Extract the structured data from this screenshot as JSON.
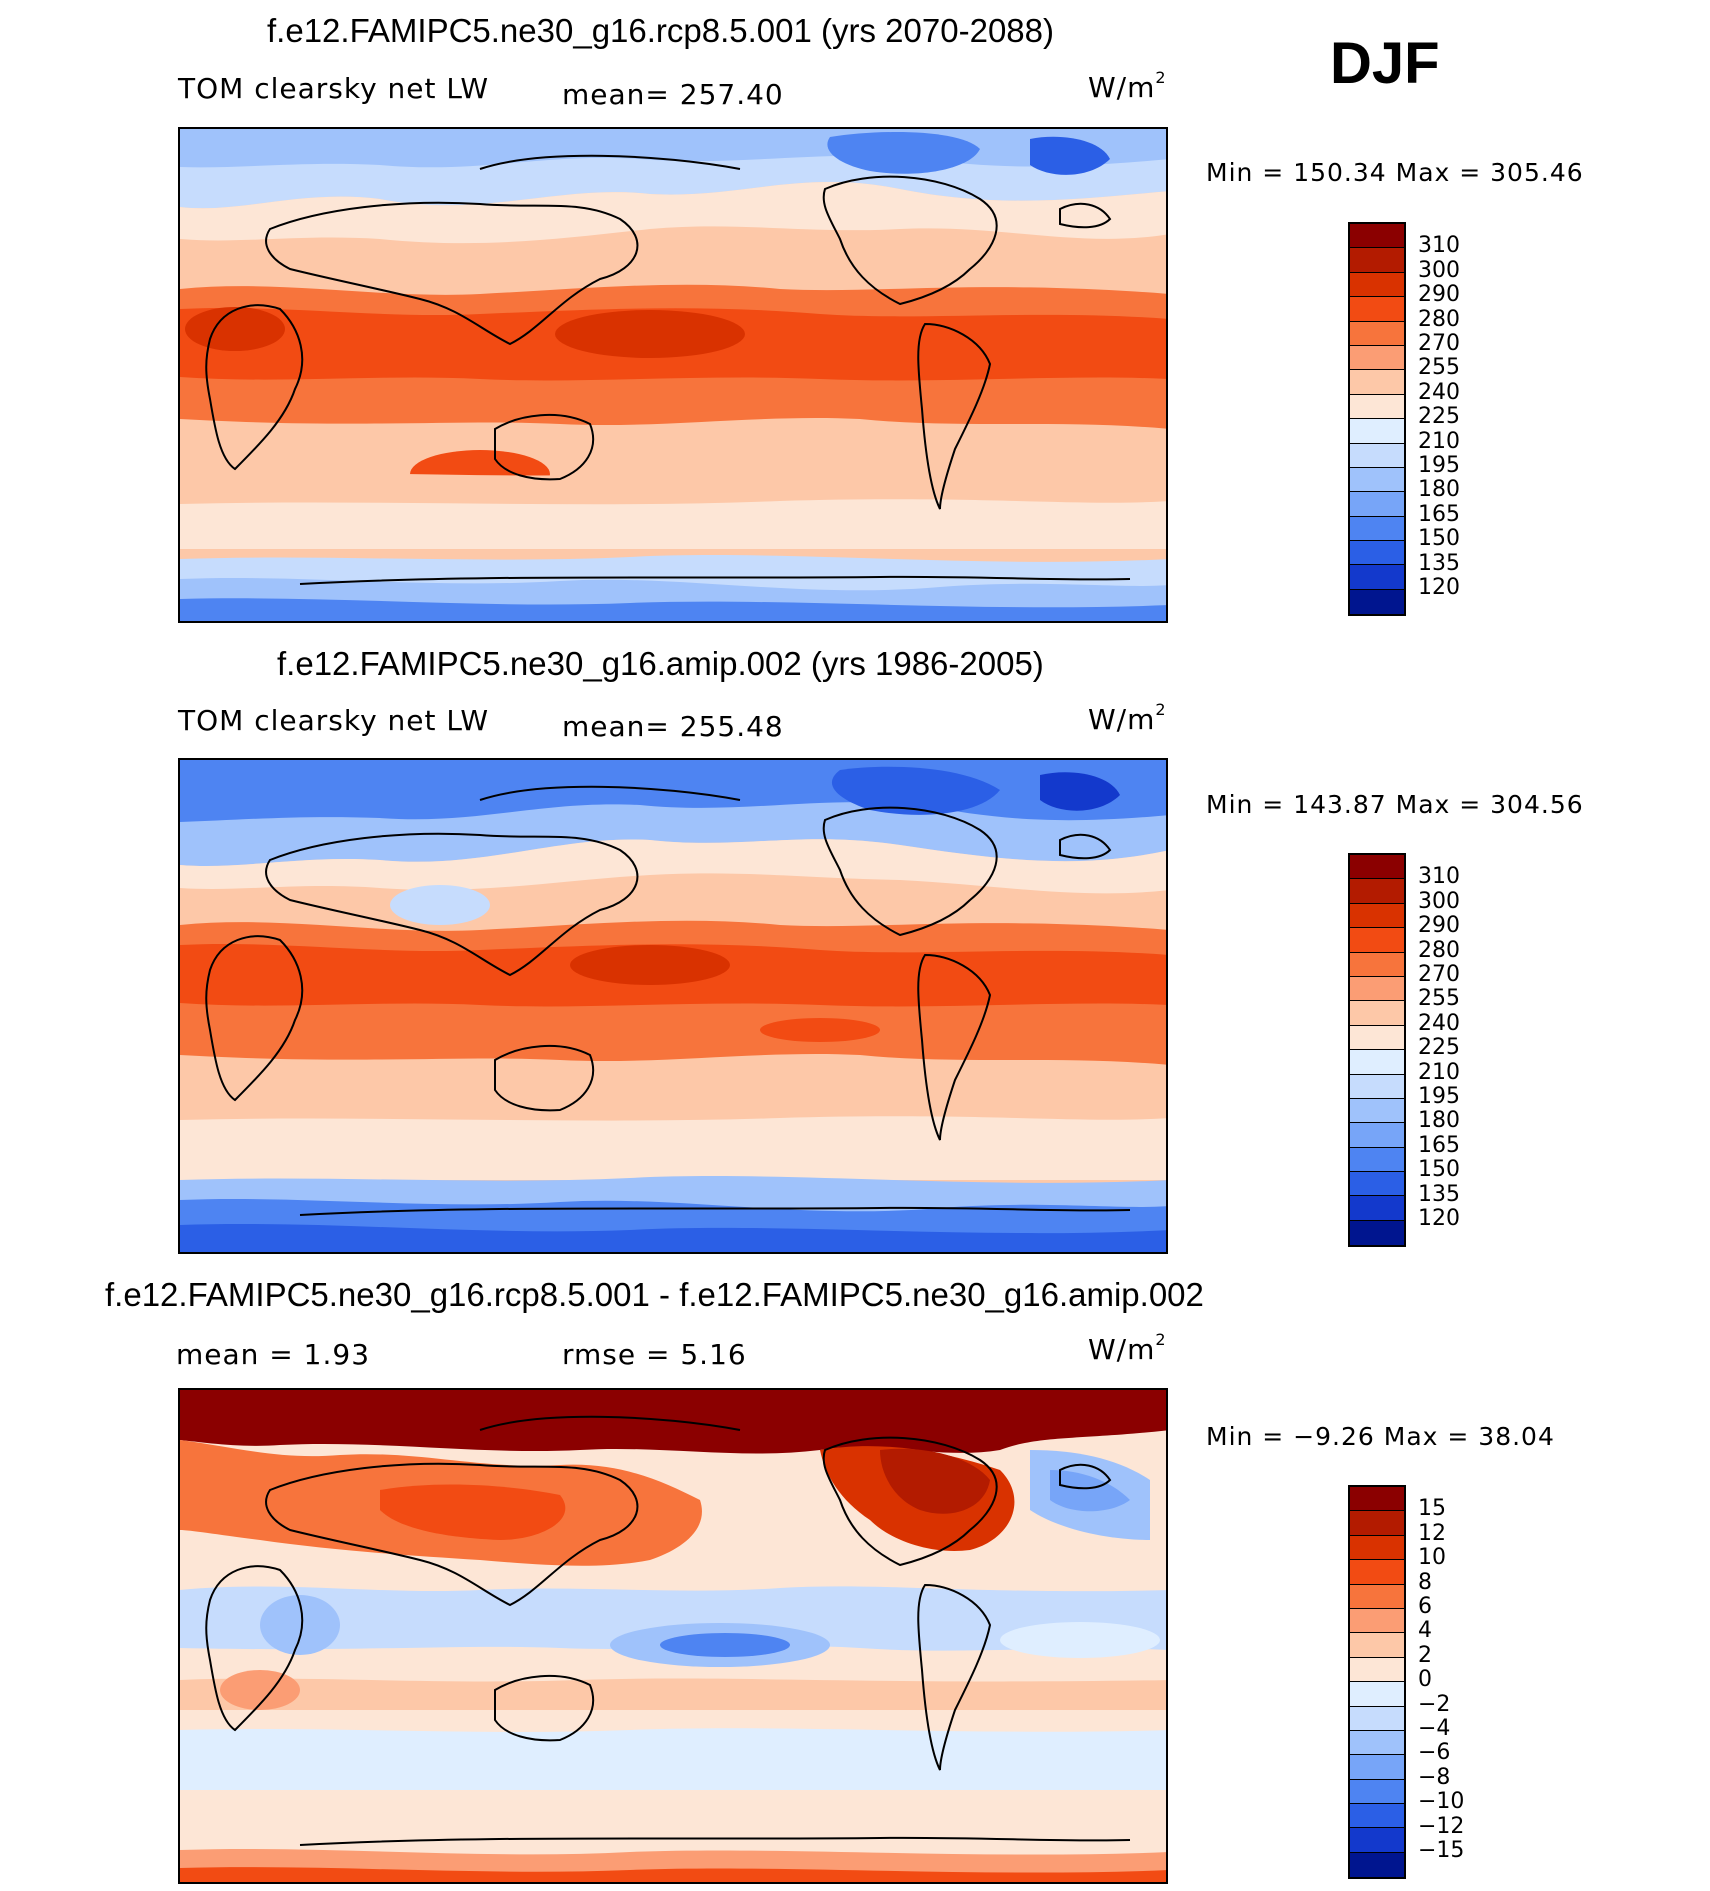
{
  "season": "DJF",
  "panels": [
    {
      "title": "f.e12.FAMIPC5.ne30_g16.rcp8.5.001 (yrs 2070-2088)",
      "variable": "TOM clearsky net LW",
      "stat1": "mean=  257.40",
      "units": "W/m",
      "units_exp": "2",
      "minmax": "Min  =  150.34  Max  =  305.46"
    },
    {
      "title": "f.e12.FAMIPC5.ne30_g16.amip.002 (yrs 1986-2005)",
      "variable": "TOM clearsky net LW",
      "stat1": "mean=  255.48",
      "units": "W/m",
      "units_exp": "2",
      "minmax": "Min  =  143.87  Max  =  304.56"
    },
    {
      "title": "f.e12.FAMIPC5.ne30_g16.rcp8.5.001 - f.e12.FAMIPC5.ne30_g16.amip.002",
      "stat1": "mean  =     1.93",
      "stat2": "rmse  =     5.16",
      "units": "W/m",
      "units_exp": "2",
      "minmax": "Min  =    −9.26  Max  =    38.04"
    }
  ],
  "colorbars": {
    "abs_levels": [
      "310",
      "300",
      "290",
      "280",
      "270",
      "255",
      "240",
      "225",
      "210",
      "195",
      "180",
      "165",
      "150",
      "135",
      "120"
    ],
    "abs_colors": [
      "#8b0000",
      "#b31b00",
      "#d93200",
      "#f24b13",
      "#f7743c",
      "#fb9d74",
      "#fdc8a8",
      "#fde6d6",
      "#dfeeff",
      "#c6dcfd",
      "#9fc2fb",
      "#77a5f8",
      "#4e84f2",
      "#2b5fe6",
      "#1339cc",
      "#00158f"
    ],
    "diff_levels": [
      "15",
      "12",
      "10",
      "8",
      "6",
      "4",
      "2",
      "0",
      "−2",
      "−4",
      "−6",
      "−8",
      "−10",
      "−12",
      "−15"
    ],
    "diff_colors": [
      "#8b0000",
      "#b31b00",
      "#d93200",
      "#f24b13",
      "#f7743c",
      "#fb9d74",
      "#fdc8a8",
      "#fde6d6",
      "#dfeeff",
      "#c6dcfd",
      "#9fc2fb",
      "#77a5f8",
      "#4e84f2",
      "#2b5fe6",
      "#1339cc",
      "#00158f"
    ]
  }
}
